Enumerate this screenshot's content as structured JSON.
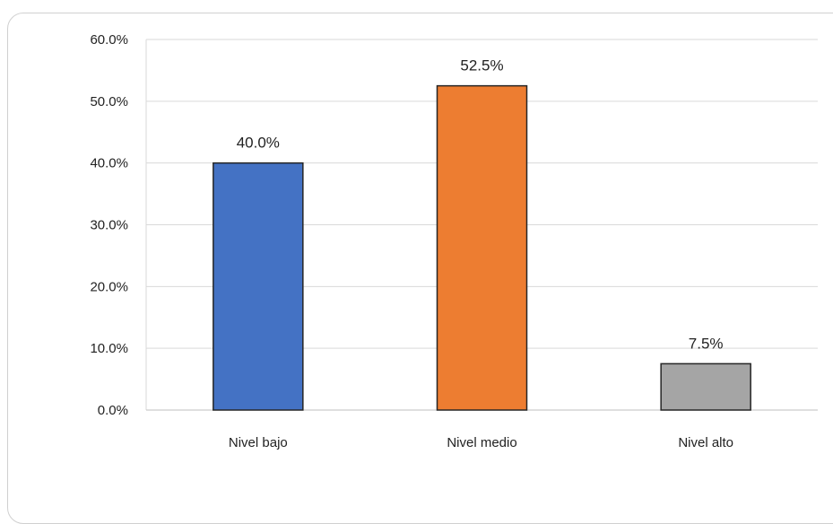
{
  "chart_data": {
    "type": "bar",
    "categories": [
      "Nivel bajo",
      "Nivel medio",
      "Nivel alto"
    ],
    "values": [
      40.0,
      52.5,
      7.5
    ],
    "value_labels": [
      "40.0%",
      "52.5%",
      "7.5%"
    ],
    "colors": [
      "#4472c4",
      "#ed7d31",
      "#a5a5a5"
    ],
    "y_tick_values": [
      0,
      10,
      20,
      30,
      40,
      50,
      60
    ],
    "y_tick_labels": [
      "0.0%",
      "10.0%",
      "20.0%",
      "30.0%",
      "40.0%",
      "50.0%",
      "60.0%"
    ],
    "ylim": [
      0,
      60
    ],
    "unit": "%",
    "grid": true,
    "legend": "none",
    "title": "",
    "xlabel": "",
    "ylabel": ""
  }
}
